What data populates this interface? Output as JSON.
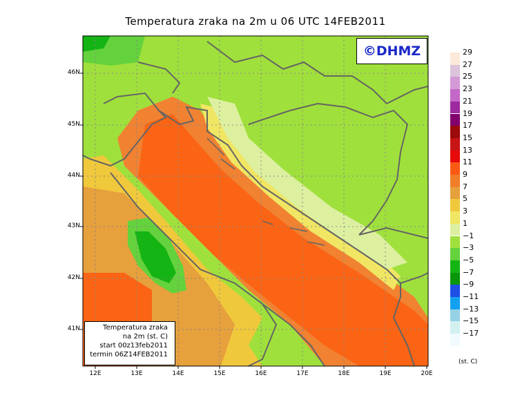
{
  "title": "Temperatura zraka na 2m u 06 UTC 14FEB2011",
  "logo": "©DHMZ",
  "info_box": {
    "line1": "Temperatura zraka",
    "line2": "na 2m (st. C)",
    "line3": "start 00z13feb2011",
    "line4": "termin 06Z14FEB2011"
  },
  "axes": {
    "lat_labels": [
      "46N",
      "45N",
      "44N",
      "43N",
      "42N",
      "41N"
    ],
    "lon_labels": [
      "12E",
      "13E",
      "14E",
      "15E",
      "16E",
      "17E",
      "18E",
      "19E",
      "20E"
    ]
  },
  "legend": {
    "unit": "(st. C)",
    "labels": [
      "29",
      "27",
      "25",
      "23",
      "21",
      "19",
      "17",
      "15",
      "13",
      "11",
      "9",
      "7",
      "5",
      "3",
      "1",
      "−1",
      "−3",
      "−5",
      "−7",
      "−9",
      "−11",
      "−13",
      "−15",
      "−17"
    ],
    "colors": [
      "#fce9d9",
      "#ddc3dc",
      "#d49ad6",
      "#c467c8",
      "#9e2aa0",
      "#82006e",
      "#9c0a0a",
      "#c81414",
      "#e80a0a",
      "#fa5a14",
      "#f07d28",
      "#e6a03c",
      "#f0c83c",
      "#f0e664",
      "#dcf0a0",
      "#a0e03c",
      "#64d23c",
      "#14b414",
      "#0a960a",
      "#1e50e6",
      "#14a0f0",
      "#96d2e6",
      "#d2f0f0",
      "#f0faff"
    ]
  },
  "colors": {
    "land_green": "#a0e03c",
    "sea_orange": "#fa6414",
    "coast_orange": "#f08232",
    "yellow": "#f0c83c",
    "dark_green": "#14b414",
    "border_grey": "#646464"
  }
}
